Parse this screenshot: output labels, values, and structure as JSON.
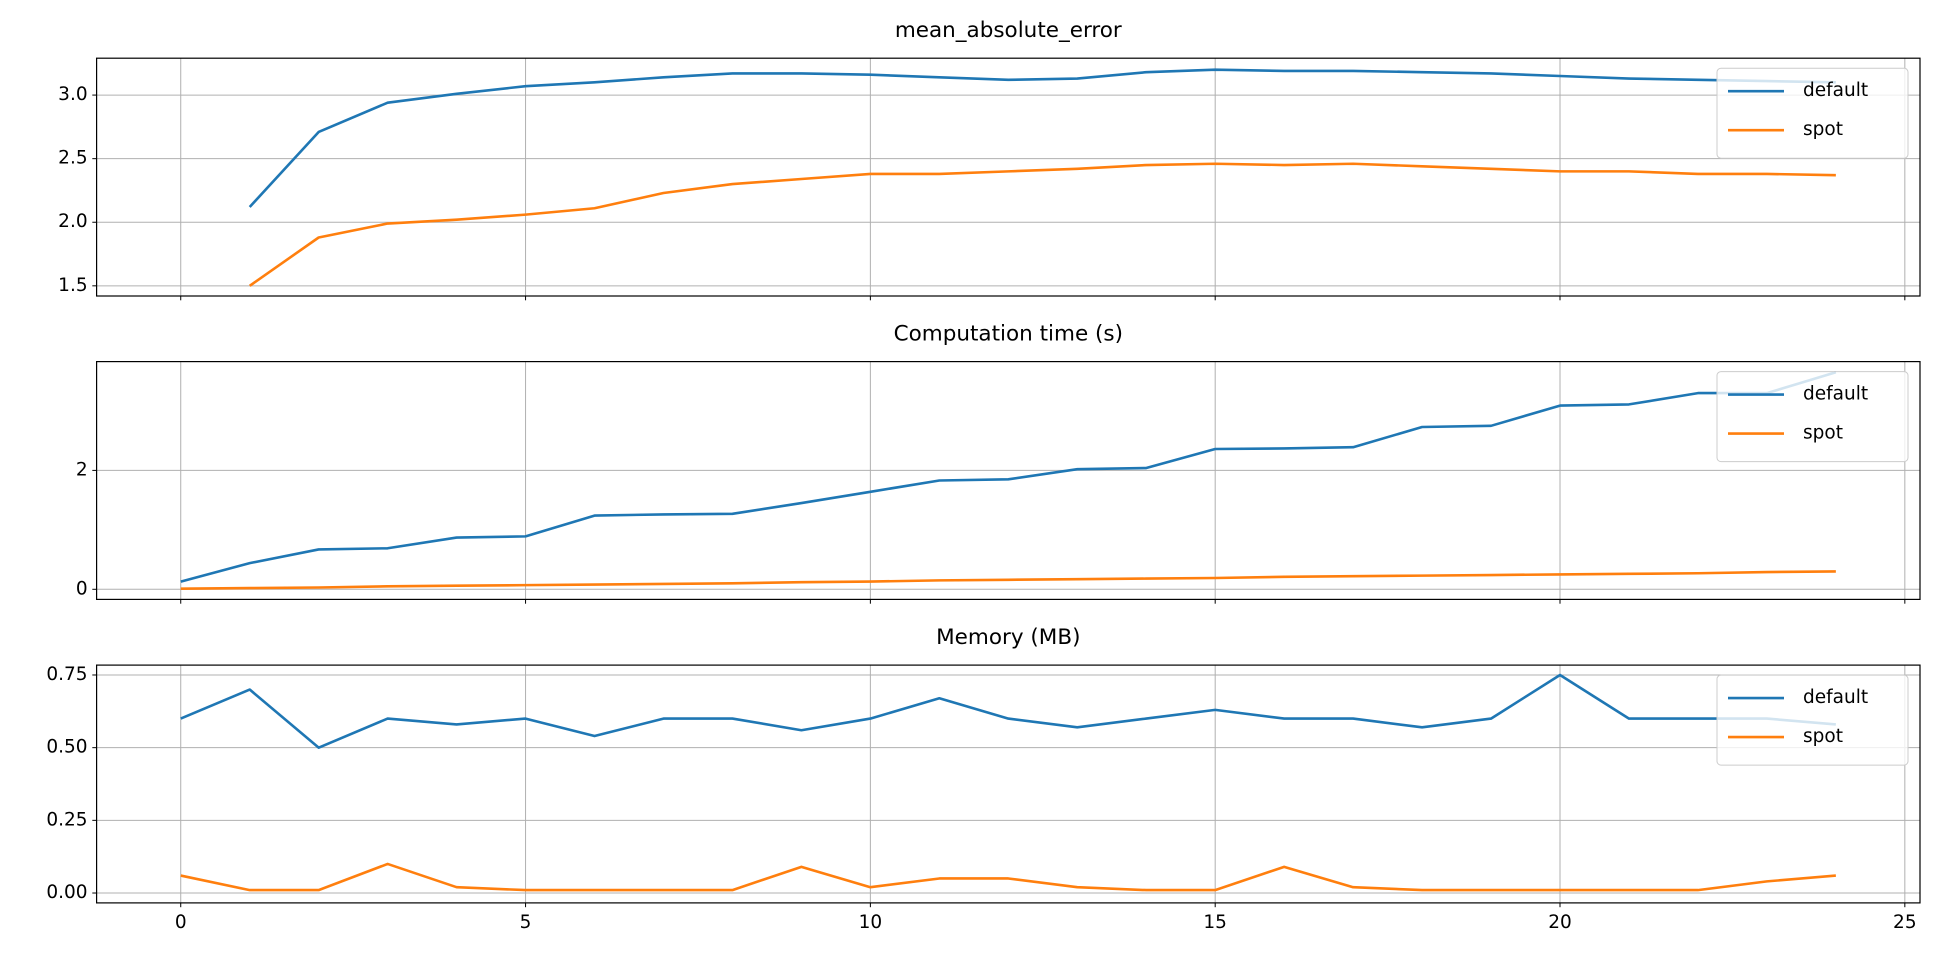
{
  "chart_data": [
    {
      "type": "line",
      "title": "mean_absolute_error",
      "x": [
        1,
        2,
        3,
        4,
        5,
        6,
        7,
        8,
        9,
        10,
        11,
        12,
        13,
        14,
        15,
        16,
        17,
        18,
        19,
        20,
        21,
        22,
        23,
        24
      ],
      "series": [
        {
          "name": "default",
          "color": "#1f77b4",
          "values": [
            2.12,
            2.71,
            2.94,
            3.01,
            3.07,
            3.1,
            3.14,
            3.17,
            3.17,
            3.16,
            3.14,
            3.12,
            3.13,
            3.18,
            3.2,
            3.19,
            3.19,
            3.18,
            3.17,
            3.15,
            3.13,
            3.12,
            3.11,
            3.1
          ]
        },
        {
          "name": "spot",
          "color": "#ff7f0e",
          "values": [
            1.5,
            1.88,
            1.99,
            2.02,
            2.06,
            2.11,
            2.23,
            2.3,
            2.34,
            2.38,
            2.38,
            2.4,
            2.42,
            2.45,
            2.46,
            2.45,
            2.46,
            2.44,
            2.42,
            2.4,
            2.4,
            2.38,
            2.38,
            2.37
          ]
        }
      ],
      "xlim": [
        -1.22,
        25.22
      ],
      "xticks": [
        0,
        5,
        10,
        15,
        20,
        25
      ],
      "ylim": [
        1.42,
        3.29
      ],
      "yticks": [
        {
          "value": 1.5,
          "label": "1.5"
        },
        {
          "value": 2,
          "label": "2.0"
        },
        {
          "value": 2.5,
          "label": "2.5"
        },
        {
          "value": 3,
          "label": "3.0"
        }
      ],
      "grid": true,
      "legend": "upper right"
    },
    {
      "type": "line",
      "title": "Computation time (s)",
      "x": [
        0,
        1,
        2,
        3,
        4,
        5,
        6,
        7,
        8,
        9,
        10,
        11,
        12,
        13,
        14,
        15,
        16,
        17,
        18,
        19,
        20,
        21,
        22,
        23,
        24
      ],
      "series": [
        {
          "name": "default",
          "color": "#1f77b4",
          "values": [
            0.13,
            0.44,
            0.67,
            0.69,
            0.87,
            0.89,
            1.24,
            1.26,
            1.27,
            1.45,
            1.64,
            1.83,
            1.85,
            2.02,
            2.04,
            2.36,
            2.37,
            2.39,
            2.73,
            2.75,
            3.09,
            3.11,
            3.3,
            3.3,
            3.65
          ]
        },
        {
          "name": "spot",
          "color": "#ff7f0e",
          "values": [
            0.01,
            0.02,
            0.03,
            0.05,
            0.06,
            0.07,
            0.08,
            0.09,
            0.1,
            0.12,
            0.13,
            0.15,
            0.16,
            0.17,
            0.18,
            0.19,
            0.21,
            0.22,
            0.23,
            0.24,
            0.25,
            0.26,
            0.27,
            0.29,
            0.3
          ]
        }
      ],
      "xlim": [
        -1.22,
        25.22
      ],
      "xticks": [
        0,
        5,
        10,
        15,
        20,
        25
      ],
      "ylim": [
        -0.17,
        3.83
      ],
      "yticks": [
        0,
        2
      ],
      "grid": true,
      "legend": "upper right"
    },
    {
      "type": "line",
      "title": "Memory (MB)",
      "x": [
        0,
        1,
        2,
        3,
        4,
        5,
        6,
        7,
        8,
        9,
        10,
        11,
        12,
        13,
        14,
        15,
        16,
        17,
        18,
        19,
        20,
        21,
        22,
        23,
        24
      ],
      "series": [
        {
          "name": "default",
          "color": "#1f77b4",
          "values": [
            0.6,
            0.7,
            0.5,
            0.6,
            0.58,
            0.6,
            0.54,
            0.6,
            0.6,
            0.56,
            0.6,
            0.67,
            0.6,
            0.57,
            0.6,
            0.63,
            0.6,
            0.6,
            0.57,
            0.6,
            0.75,
            0.6,
            0.6,
            0.6,
            0.58
          ]
        },
        {
          "name": "spot",
          "color": "#ff7f0e",
          "values": [
            0.06,
            0.01,
            0.01,
            0.1,
            0.02,
            0.01,
            0.01,
            0.01,
            0.01,
            0.09,
            0.02,
            0.05,
            0.05,
            0.02,
            0.01,
            0.01,
            0.09,
            0.02,
            0.01,
            0.01,
            0.01,
            0.01,
            0.01,
            0.04,
            0.06
          ]
        }
      ],
      "xlim": [
        -1.22,
        25.22
      ],
      "xticks": [
        0,
        5,
        10,
        15,
        20,
        25
      ],
      "ylim": [
        -0.034,
        0.784
      ],
      "yticks": [
        {
          "value": 0,
          "label": "0.00"
        },
        0.25,
        {
          "value": 0.5,
          "label": "0.50"
        },
        0.75
      ],
      "grid": true,
      "legend": "upper right"
    }
  ]
}
